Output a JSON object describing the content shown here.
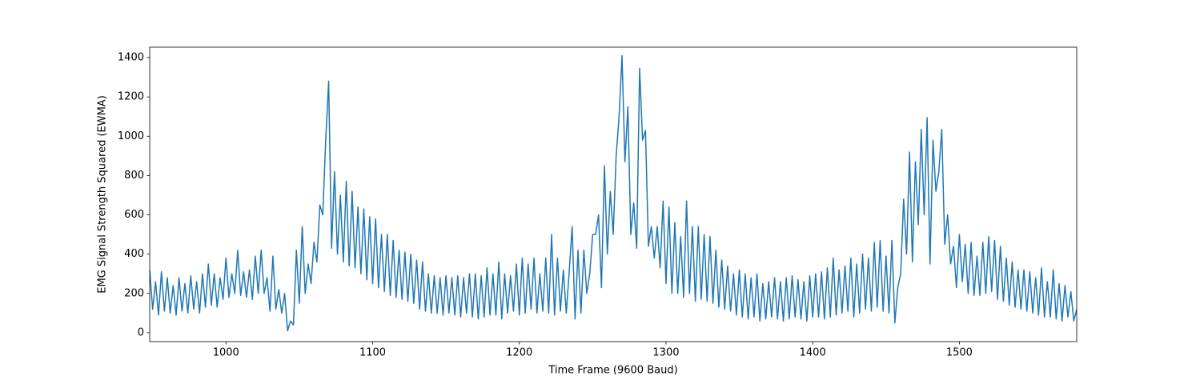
{
  "chart_data": {
    "type": "line",
    "xlabel": "Time Frame (9600 Baud)",
    "ylabel": "EMG Signal Strength Squared (EWMA)",
    "xlim": [
      948,
      1580
    ],
    "ylim": [
      -45,
      1453
    ],
    "xticks": [
      1000,
      1100,
      1200,
      1300,
      1400,
      1500
    ],
    "yticks": [
      0,
      200,
      400,
      600,
      800,
      1000,
      1200,
      1400
    ],
    "grid": false,
    "x": [
      948,
      950,
      952,
      954,
      956,
      958,
      960,
      962,
      964,
      966,
      968,
      970,
      972,
      974,
      976,
      978,
      980,
      982,
      984,
      986,
      988,
      990,
      992,
      994,
      996,
      998,
      1000,
      1002,
      1004,
      1006,
      1008,
      1010,
      1012,
      1014,
      1016,
      1018,
      1020,
      1022,
      1024,
      1026,
      1028,
      1030,
      1032,
      1034,
      1036,
      1038,
      1040,
      1042,
      1044,
      1046,
      1048,
      1050,
      1052,
      1054,
      1056,
      1058,
      1060,
      1062,
      1064,
      1066,
      1068,
      1070,
      1072,
      1074,
      1076,
      1078,
      1080,
      1082,
      1084,
      1086,
      1088,
      1090,
      1092,
      1094,
      1096,
      1098,
      1100,
      1102,
      1104,
      1106,
      1108,
      1110,
      1112,
      1114,
      1116,
      1118,
      1120,
      1122,
      1124,
      1126,
      1128,
      1130,
      1132,
      1134,
      1136,
      1138,
      1140,
      1142,
      1144,
      1146,
      1148,
      1150,
      1152,
      1154,
      1156,
      1158,
      1160,
      1162,
      1164,
      1166,
      1168,
      1170,
      1172,
      1174,
      1176,
      1178,
      1180,
      1182,
      1184,
      1186,
      1188,
      1190,
      1192,
      1194,
      1196,
      1198,
      1200,
      1202,
      1204,
      1206,
      1208,
      1210,
      1212,
      1214,
      1216,
      1218,
      1220,
      1222,
      1224,
      1226,
      1228,
      1230,
      1232,
      1234,
      1236,
      1238,
      1240,
      1242,
      1244,
      1246,
      1248,
      1250,
      1252,
      1254,
      1256,
      1258,
      1260,
      1262,
      1264,
      1266,
      1268,
      1270,
      1272,
      1274,
      1276,
      1278,
      1280,
      1282,
      1284,
      1286,
      1288,
      1290,
      1292,
      1294,
      1296,
      1298,
      1300,
      1302,
      1304,
      1306,
      1308,
      1310,
      1312,
      1314,
      1316,
      1318,
      1320,
      1322,
      1324,
      1326,
      1328,
      1330,
      1332,
      1334,
      1336,
      1338,
      1340,
      1342,
      1344,
      1346,
      1348,
      1350,
      1352,
      1354,
      1356,
      1358,
      1360,
      1362,
      1364,
      1366,
      1368,
      1370,
      1372,
      1374,
      1376,
      1378,
      1380,
      1382,
      1384,
      1386,
      1388,
      1390,
      1392,
      1394,
      1396,
      1398,
      1400,
      1402,
      1404,
      1406,
      1408,
      1410,
      1412,
      1414,
      1416,
      1418,
      1420,
      1422,
      1424,
      1426,
      1428,
      1430,
      1432,
      1434,
      1436,
      1438,
      1440,
      1442,
      1444,
      1446,
      1448,
      1450,
      1452,
      1454,
      1456,
      1458,
      1460,
      1462,
      1464,
      1466,
      1468,
      1470,
      1472,
      1474,
      1476,
      1478,
      1480,
      1482,
      1484,
      1486,
      1488,
      1490,
      1492,
      1494,
      1496,
      1498,
      1500,
      1502,
      1504,
      1506,
      1508,
      1510,
      1512,
      1514,
      1516,
      1518,
      1520,
      1522,
      1524,
      1526,
      1528,
      1530,
      1532,
      1534,
      1536,
      1538,
      1540,
      1542,
      1544,
      1546,
      1548,
      1550,
      1552,
      1554,
      1556,
      1558,
      1560,
      1562,
      1564,
      1566,
      1568,
      1570,
      1572,
      1574,
      1576,
      1578,
      1580
    ],
    "series": [
      {
        "color": "#1f77b4",
        "values": [
          320,
          120,
          260,
          90,
          310,
          110,
          280,
          100,
          240,
          90,
          280,
          110,
          250,
          100,
          290,
          120,
          260,
          100,
          300,
          130,
          350,
          140,
          300,
          130,
          280,
          170,
          380,
          180,
          300,
          200,
          420,
          190,
          310,
          180,
          320,
          170,
          390,
          200,
          420,
          200,
          280,
          110,
          390,
          120,
          220,
          100,
          200,
          10,
          60,
          40,
          420,
          150,
          540,
          200,
          350,
          250,
          460,
          360,
          650,
          600,
          980,
          1280,
          430,
          820,
          400,
          700,
          360,
          770,
          340,
          720,
          330,
          640,
          300,
          630,
          270,
          590,
          250,
          580,
          230,
          500,
          210,
          500,
          190,
          470,
          180,
          420,
          170,
          410,
          160,
          400,
          150,
          370,
          120,
          360,
          110,
          300,
          100,
          290,
          100,
          280,
          90,
          290,
          100,
          280,
          90,
          290,
          80,
          280,
          100,
          300,
          80,
          300,
          70,
          290,
          80,
          330,
          90,
          300,
          90,
          360,
          70,
          300,
          100,
          290,
          110,
          350,
          90,
          380,
          100,
          350,
          120,
          380,
          100,
          300,
          110,
          380,
          100,
          500,
          90,
          380,
          110,
          320,
          100,
          310,
          540,
          70,
          420,
          100,
          420,
          200,
          300,
          500,
          500,
          600,
          230,
          850,
          400,
          720,
          500,
          900,
          1100,
          1410,
          870,
          1150,
          500,
          660,
          430,
          1345,
          980,
          1030,
          440,
          540,
          380,
          540,
          330,
          670,
          250,
          640,
          200,
          560,
          200,
          490,
          180,
          670,
          200,
          540,
          160,
          540,
          170,
          500,
          160,
          490,
          150,
          420,
          130,
          370,
          120,
          340,
          110,
          300,
          90,
          320,
          80,
          300,
          70,
          280,
          80,
          300,
          60,
          250,
          70,
          260,
          80,
          280,
          70,
          260,
          60,
          280,
          70,
          290,
          80,
          270,
          70,
          260,
          60,
          290,
          80,
          300,
          80,
          310,
          70,
          330,
          80,
          380,
          90,
          320,
          100,
          340,
          110,
          380,
          80,
          350,
          100,
          400,
          120,
          380,
          110,
          460,
          130,
          470,
          110,
          390,
          100,
          470,
          50,
          230,
          300,
          680,
          400,
          920,
          360,
          870,
          550,
          1035,
          600,
          1095,
          350,
          980,
          720,
          820,
          1035,
          450,
          600,
          350,
          440,
          230,
          500,
          260,
          450,
          200,
          460,
          190,
          390,
          190,
          460,
          200,
          490,
          210,
          470,
          170,
          440,
          160,
          380,
          140,
          360,
          130,
          320,
          120,
          320,
          110,
          310,
          100,
          280,
          90,
          330,
          80,
          260,
          80,
          320,
          70,
          250,
          60,
          240,
          80,
          210,
          60,
          120
        ]
      }
    ]
  }
}
